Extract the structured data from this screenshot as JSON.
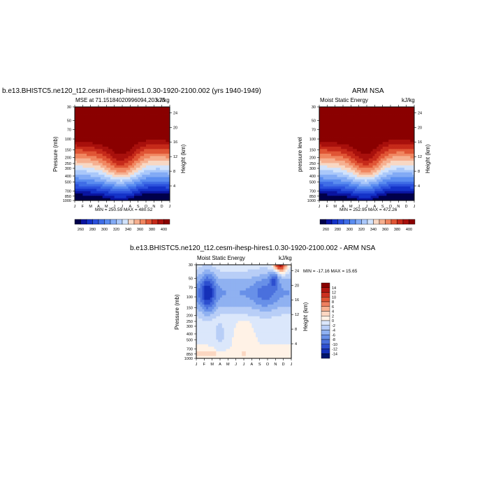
{
  "chart_data": [
    {
      "type": "heatmap",
      "title": "b.e13.BHISTC5.ne120_t12.cesm-ihesp-hires1.0.30-1920-2100.002 (yrs 1940-1949)",
      "subtitle_left": "MSE at 71.15184020996094,203.75",
      "subtitle_right": "kJ/kg",
      "ylabel": "Pressure (mb)",
      "ylabel_right": "Height (km)",
      "minmax": "MIN = 250.59 MAX = 480.52",
      "x": [
        "J",
        "F",
        "M",
        "A",
        "M",
        "J",
        "J",
        "A",
        "S",
        "O",
        "N",
        "D",
        "J"
      ],
      "y_ticks": [
        "30",
        "50",
        "70",
        "100",
        "150",
        "200",
        "250",
        "300",
        "400",
        "500",
        "700",
        "850",
        "1000"
      ],
      "y_right_ticks": [
        "24",
        "20",
        "16",
        "12",
        "8",
        "4"
      ],
      "colorbar_labels": [
        "260",
        "280",
        "300",
        "320",
        "340",
        "360",
        "380",
        "400"
      ],
      "min": 250.59,
      "max": 480.52
    },
    {
      "type": "heatmap",
      "title": "ARM NSA",
      "subtitle_left": "Moist Static Energy",
      "subtitle_right": "kJ/kg",
      "ylabel": "pressure level",
      "ylabel_right": "Height (km)",
      "minmax": "MIN = 252.95 MAX = 472.26",
      "x": [
        "J",
        "F",
        "M",
        "A",
        "M",
        "J",
        "J",
        "A",
        "S",
        "O",
        "N",
        "D",
        "J"
      ],
      "y_ticks": [
        "30",
        "50",
        "70",
        "100",
        "150",
        "200",
        "250",
        "300",
        "400",
        "500",
        "700",
        "850",
        "1000"
      ],
      "y_right_ticks": [
        "24",
        "20",
        "16",
        "12",
        "8",
        "4"
      ],
      "colorbar_labels": [
        "260",
        "280",
        "300",
        "320",
        "340",
        "360",
        "380",
        "400"
      ],
      "min": 252.95,
      "max": 472.26
    },
    {
      "type": "heatmap",
      "title": "b.e13.BHISTC5.ne120_t12.cesm-ihesp-hires1.0.30-1920-2100.002 - ARM NSA",
      "subtitle_left": "Moist Static Energy",
      "subtitle_right": "kJ/kg",
      "ylabel": "Pressure (mb)",
      "ylabel_right": "Height (km)",
      "minmax": "MIN = -17.16 MAX =  15.65",
      "x": [
        "J",
        "F",
        "M",
        "A",
        "M",
        "J",
        "J",
        "A",
        "S",
        "O",
        "N",
        "D",
        "J"
      ],
      "y_ticks": [
        "30",
        "50",
        "70",
        "100",
        "150",
        "200",
        "250",
        "300",
        "400",
        "500",
        "700",
        "850",
        "1000"
      ],
      "y_right_ticks": [
        "24",
        "20",
        "16",
        "12",
        "8",
        "4"
      ],
      "colorbar_labels": [
        "14",
        "12",
        "10",
        "8",
        "6",
        "4",
        "2",
        "0",
        "-2",
        "-4",
        "-6",
        "-8",
        "-10",
        "-12",
        "-14"
      ],
      "min": -17.16,
      "max": 15.65
    }
  ]
}
